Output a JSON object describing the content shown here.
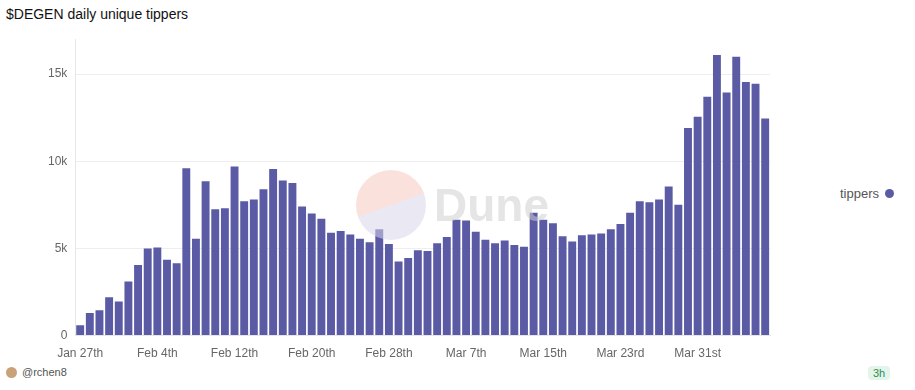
{
  "chart_data": {
    "type": "bar",
    "title": "$DEGEN daily unique tippers",
    "categories": [
      "Jan 27th",
      null,
      null,
      null,
      null,
      null,
      null,
      null,
      "Feb 4th",
      null,
      null,
      null,
      null,
      null,
      null,
      null,
      "Feb 12th",
      null,
      null,
      null,
      null,
      null,
      null,
      null,
      "Feb 20th",
      null,
      null,
      null,
      null,
      null,
      null,
      null,
      "Feb 28th",
      null,
      null,
      null,
      null,
      null,
      null,
      null,
      "Mar 7th",
      null,
      null,
      null,
      null,
      null,
      null,
      null,
      "Mar 15th",
      null,
      null,
      null,
      null,
      null,
      null,
      null,
      "Mar 23rd",
      null,
      null,
      null,
      null,
      null,
      null,
      null,
      "Mar 31st",
      null,
      null,
      null,
      null,
      null,
      null,
      null
    ],
    "series": [
      {
        "name": "tippers",
        "color": "#5b5aa5",
        "values": [
          600,
          1300,
          1450,
          2200,
          1950,
          3100,
          4050,
          5000,
          5050,
          4350,
          4150,
          9600,
          5550,
          8850,
          7250,
          7300,
          9700,
          7700,
          7800,
          8400,
          9550,
          8900,
          8750,
          7400,
          7000,
          6700,
          5900,
          6000,
          5800,
          5550,
          5350,
          6100,
          5250,
          4250,
          4450,
          4900,
          4850,
          5300,
          5650,
          6650,
          6600,
          5950,
          5500,
          5300,
          5450,
          5200,
          5100,
          7050,
          6650,
          6450,
          5700,
          5400,
          5750,
          5800,
          5850,
          6100,
          6400,
          7050,
          7700,
          7650,
          7800,
          8550,
          7500,
          11900,
          12550,
          13700,
          16100,
          13950,
          16000,
          14550,
          14450,
          12450
        ]
      }
    ],
    "ylim": [
      0,
      17000
    ],
    "yticks": [
      0,
      {
        "value": 5000,
        "label": "5k"
      },
      {
        "value": 10000,
        "label": "10k"
      },
      {
        "value": 15000,
        "label": "15k"
      }
    ],
    "grid": true,
    "legend": "right"
  },
  "page": {
    "watermark": "Dune",
    "author": "@rchen8",
    "badge": "3h"
  }
}
